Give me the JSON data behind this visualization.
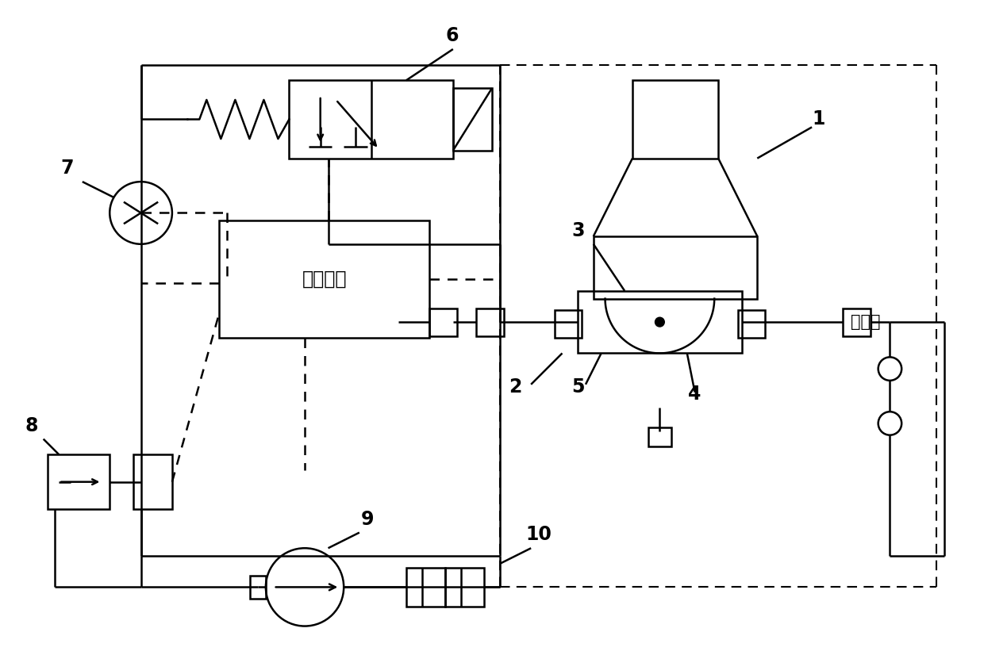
{
  "bg_color": "#ffffff",
  "line_color": "#000000",
  "label_1": "1",
  "label_2": "2",
  "label_3": "3",
  "label_4": "4",
  "label_5": "5",
  "label_6": "6",
  "label_7": "7",
  "label_8": "8",
  "label_9": "9",
  "label_10": "10",
  "label_control": "控制电路",
  "label_constant": "恒流源",
  "fontsize_label": 15,
  "fontsize_number": 17
}
